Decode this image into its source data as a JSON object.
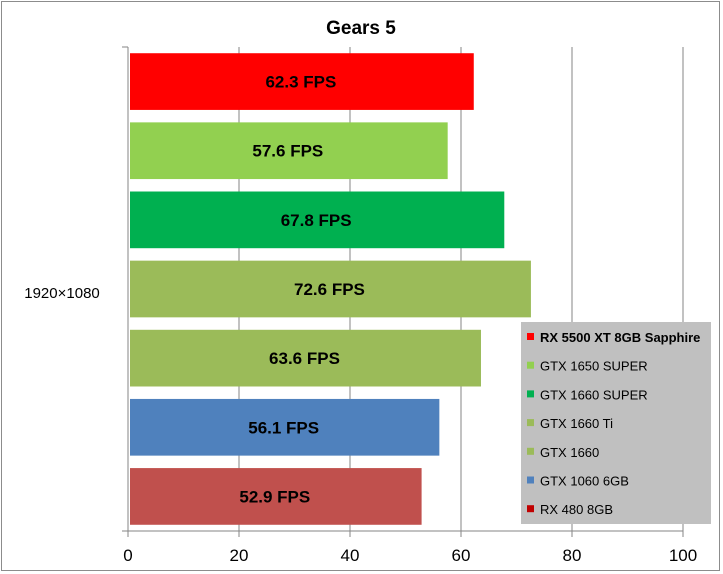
{
  "chart_data": {
    "type": "bar",
    "orientation": "horizontal",
    "title": "Gears 5",
    "categories": [
      "1920×1080"
    ],
    "xlabel": "",
    "ylabel": "",
    "xlim": [
      0,
      100
    ],
    "x_ticks": [
      0,
      20,
      40,
      60,
      80,
      100
    ],
    "grid": "vertical major gridlines",
    "legend_position": "right",
    "series": [
      {
        "name": "RX 5500 XT 8GB Sapphire",
        "values": [
          62.3
        ],
        "label": "62.3 FPS",
        "color": "#ff0000",
        "legend_color": "#ff0000",
        "legend_bold": true
      },
      {
        "name": "GTX 1650 SUPER",
        "values": [
          57.6
        ],
        "label": "57.6 FPS",
        "color": "#92d050",
        "legend_color": "#92d050"
      },
      {
        "name": "GTX 1660 SUPER",
        "values": [
          67.8
        ],
        "label": "67.8 FPS",
        "color": "#00b050",
        "legend_color": "#00b050"
      },
      {
        "name": "GTX 1660 Ti",
        "values": [
          72.6
        ],
        "label": "72.6 FPS",
        "color": "#9bbb59",
        "legend_color": "#9bbb59"
      },
      {
        "name": "GTX 1660",
        "values": [
          63.6
        ],
        "label": "63.6 FPS",
        "color": "#9bbb59",
        "legend_color": "#9bbb59"
      },
      {
        "name": "GTX 1060 6GB",
        "values": [
          56.1
        ],
        "label": "56.1 FPS",
        "color": "#4f81bd",
        "legend_color": "#4f81bd"
      },
      {
        "name": "RX 480 8GB",
        "values": [
          52.9
        ],
        "label": "52.9 FPS",
        "color": "#c0504d",
        "legend_color": "#c00000"
      }
    ],
    "legend_background": "#c0c0c0"
  }
}
